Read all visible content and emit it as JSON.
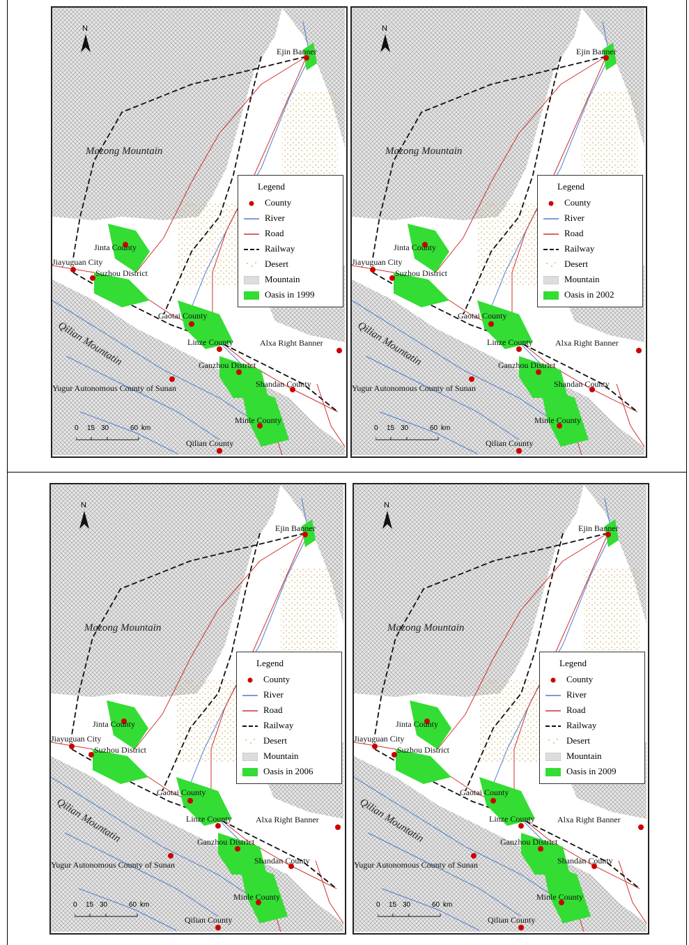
{
  "maps": [
    {
      "oasis_label": "Oasis in 1999"
    },
    {
      "oasis_label": "Oasis in 2002"
    },
    {
      "oasis_label": "Oasis in 2006"
    },
    {
      "oasis_label": "Oasis in 2009"
    }
  ],
  "legend": {
    "title": "Legend",
    "county": "County",
    "river": "River",
    "road": "Road",
    "railway": "Railway",
    "desert": "Desert",
    "mountain": "Mountain"
  },
  "places": {
    "ejin": "Ejin Banner",
    "jinta": "Jinta County",
    "jiayuguan": "Jiayuguan City",
    "suzhou": "Suzhou District",
    "gaotai": "Gaotai County",
    "linze": "Linze County",
    "alxa": "Alxa Right Banner",
    "ganzhou": "Ganzhou District",
    "sunan": "Yugur Autonomous County of Sunan",
    "shandan": "Shandan County",
    "minle": "Minle County",
    "qilian": "Qilian County"
  },
  "mountains": {
    "mazong": "Mazong Mountain",
    "qilian": "Qilian Mountatin"
  },
  "north_label": "N",
  "scale": {
    "t0": "0",
    "t1": "15",
    "t2": "30",
    "t3": "60",
    "unit": "km"
  },
  "colors": {
    "county": "#cc0000",
    "river": "#4a7fd0",
    "road": "#d03030",
    "railway": "#111111",
    "desert": "#e0c890",
    "mountain": "#c8c8c8",
    "oasis": "#33dd33"
  }
}
